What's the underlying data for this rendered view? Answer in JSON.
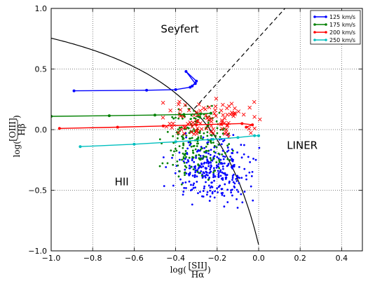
{
  "chart_data": {
    "type": "scatter",
    "xlim": [
      -1.0,
      0.5
    ],
    "ylim": [
      -1.0,
      1.0
    ],
    "xticks": [
      -1.0,
      -0.8,
      -0.6,
      -0.4,
      -0.2,
      0.0,
      0.2,
      0.4
    ],
    "yticks": [
      -1.0,
      -0.5,
      0.0,
      0.5,
      1.0
    ],
    "xtick_labels": [
      "−1.0",
      "−0.8",
      "−0.6",
      "−0.4",
      "−0.2",
      "0.0",
      "0.2",
      "0.4"
    ],
    "ytick_labels": [
      "−1.0",
      "−0.5",
      "0.0",
      "0.5",
      "1.0"
    ],
    "grid": true,
    "legend_position": "top-right",
    "xlabel": {
      "prefix": "log(",
      "num": "[SII]",
      "den": "Hα",
      "suffix": ")"
    },
    "ylabel": {
      "prefix": "log(",
      "num": "[OIII]",
      "den": "Hβ",
      "suffix": ")"
    },
    "region_labels": [
      {
        "text": "Seyfert",
        "x": -0.38,
        "y": 0.8
      },
      {
        "text": "LINER",
        "x": 0.21,
        "y": -0.16
      },
      {
        "text": "HII",
        "x": -0.66,
        "y": -0.46
      }
    ],
    "series": [
      {
        "name": "125 km/s",
        "color": "#0000ff",
        "points": [
          [
            -0.89,
            0.32
          ],
          [
            -0.54,
            0.325
          ],
          [
            -0.4,
            0.33
          ],
          [
            -0.33,
            0.35
          ],
          [
            -0.305,
            0.38
          ],
          [
            -0.35,
            0.48
          ],
          [
            -0.3,
            0.4
          ],
          [
            -0.32,
            0.36
          ]
        ]
      },
      {
        "name": "175 km/s",
        "color": "#008000",
        "points": [
          [
            -1.0,
            0.11
          ],
          [
            -0.72,
            0.115
          ],
          [
            -0.5,
            0.12
          ],
          [
            -0.36,
            0.125
          ],
          [
            -0.28,
            0.13
          ],
          [
            -0.23,
            0.135
          ]
        ]
      },
      {
        "name": "200 km/s",
        "color": "#ff0000",
        "points": [
          [
            -0.96,
            0.01
          ],
          [
            -0.68,
            0.02
          ],
          [
            -0.46,
            0.03
          ],
          [
            -0.3,
            0.04
          ],
          [
            -0.18,
            0.045
          ],
          [
            -0.08,
            0.05
          ],
          [
            -0.03,
            0.04
          ],
          [
            -0.06,
            0.02
          ]
        ]
      },
      {
        "name": "250 km/s",
        "color": "#00bfbf",
        "points": [
          [
            -0.86,
            -0.14
          ],
          [
            -0.6,
            -0.12
          ],
          [
            -0.4,
            -0.1
          ],
          [
            -0.22,
            -0.08
          ],
          [
            -0.1,
            -0.065
          ],
          [
            -0.02,
            -0.05
          ],
          [
            0.0,
            -0.05
          ]
        ]
      }
    ]
  }
}
